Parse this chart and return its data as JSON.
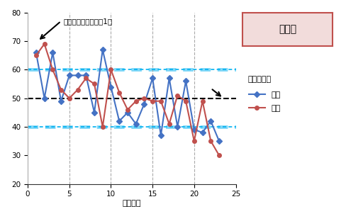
{
  "x": [
    1,
    2,
    3,
    4,
    5,
    6,
    7,
    8,
    9,
    10,
    11,
    12,
    13,
    14,
    15,
    16,
    17,
    18,
    19,
    20,
    21,
    22,
    23
  ],
  "tokuten": [
    66,
    50,
    66,
    49,
    58,
    58,
    58,
    45,
    67,
    54,
    42,
    45,
    41,
    48,
    57,
    37,
    57,
    40,
    56,
    39,
    38,
    42,
    35
  ],
  "shikkai": [
    65,
    69,
    60,
    53,
    50,
    53,
    57,
    55,
    40,
    60,
    52,
    46,
    49,
    50,
    49,
    49,
    41,
    51,
    49,
    35,
    49,
    35,
    30
  ],
  "avg_line": 50,
  "upper_band": 60,
  "lower_band": 40,
  "ylim": [
    20,
    80
  ],
  "xlim": [
    0,
    25
  ],
  "yticks": [
    20,
    30,
    40,
    50,
    60,
    70,
    80
  ],
  "xticks": [
    0,
    5,
    10,
    15,
    20,
    25
  ],
  "xlabel": "（順位）",
  "title_box_text": "偏差値",
  "legend_title": "平均ライン",
  "legend_tokuten": "得点",
  "legend_shikkai": "失点",
  "annotation_text": "徳島ヴォルティス：1位",
  "blue_color": "#4472C4",
  "red_color": "#C0504D",
  "avg_color": "#000000",
  "band_color": "#00B0F0",
  "bg_color": "#FFFFFF"
}
